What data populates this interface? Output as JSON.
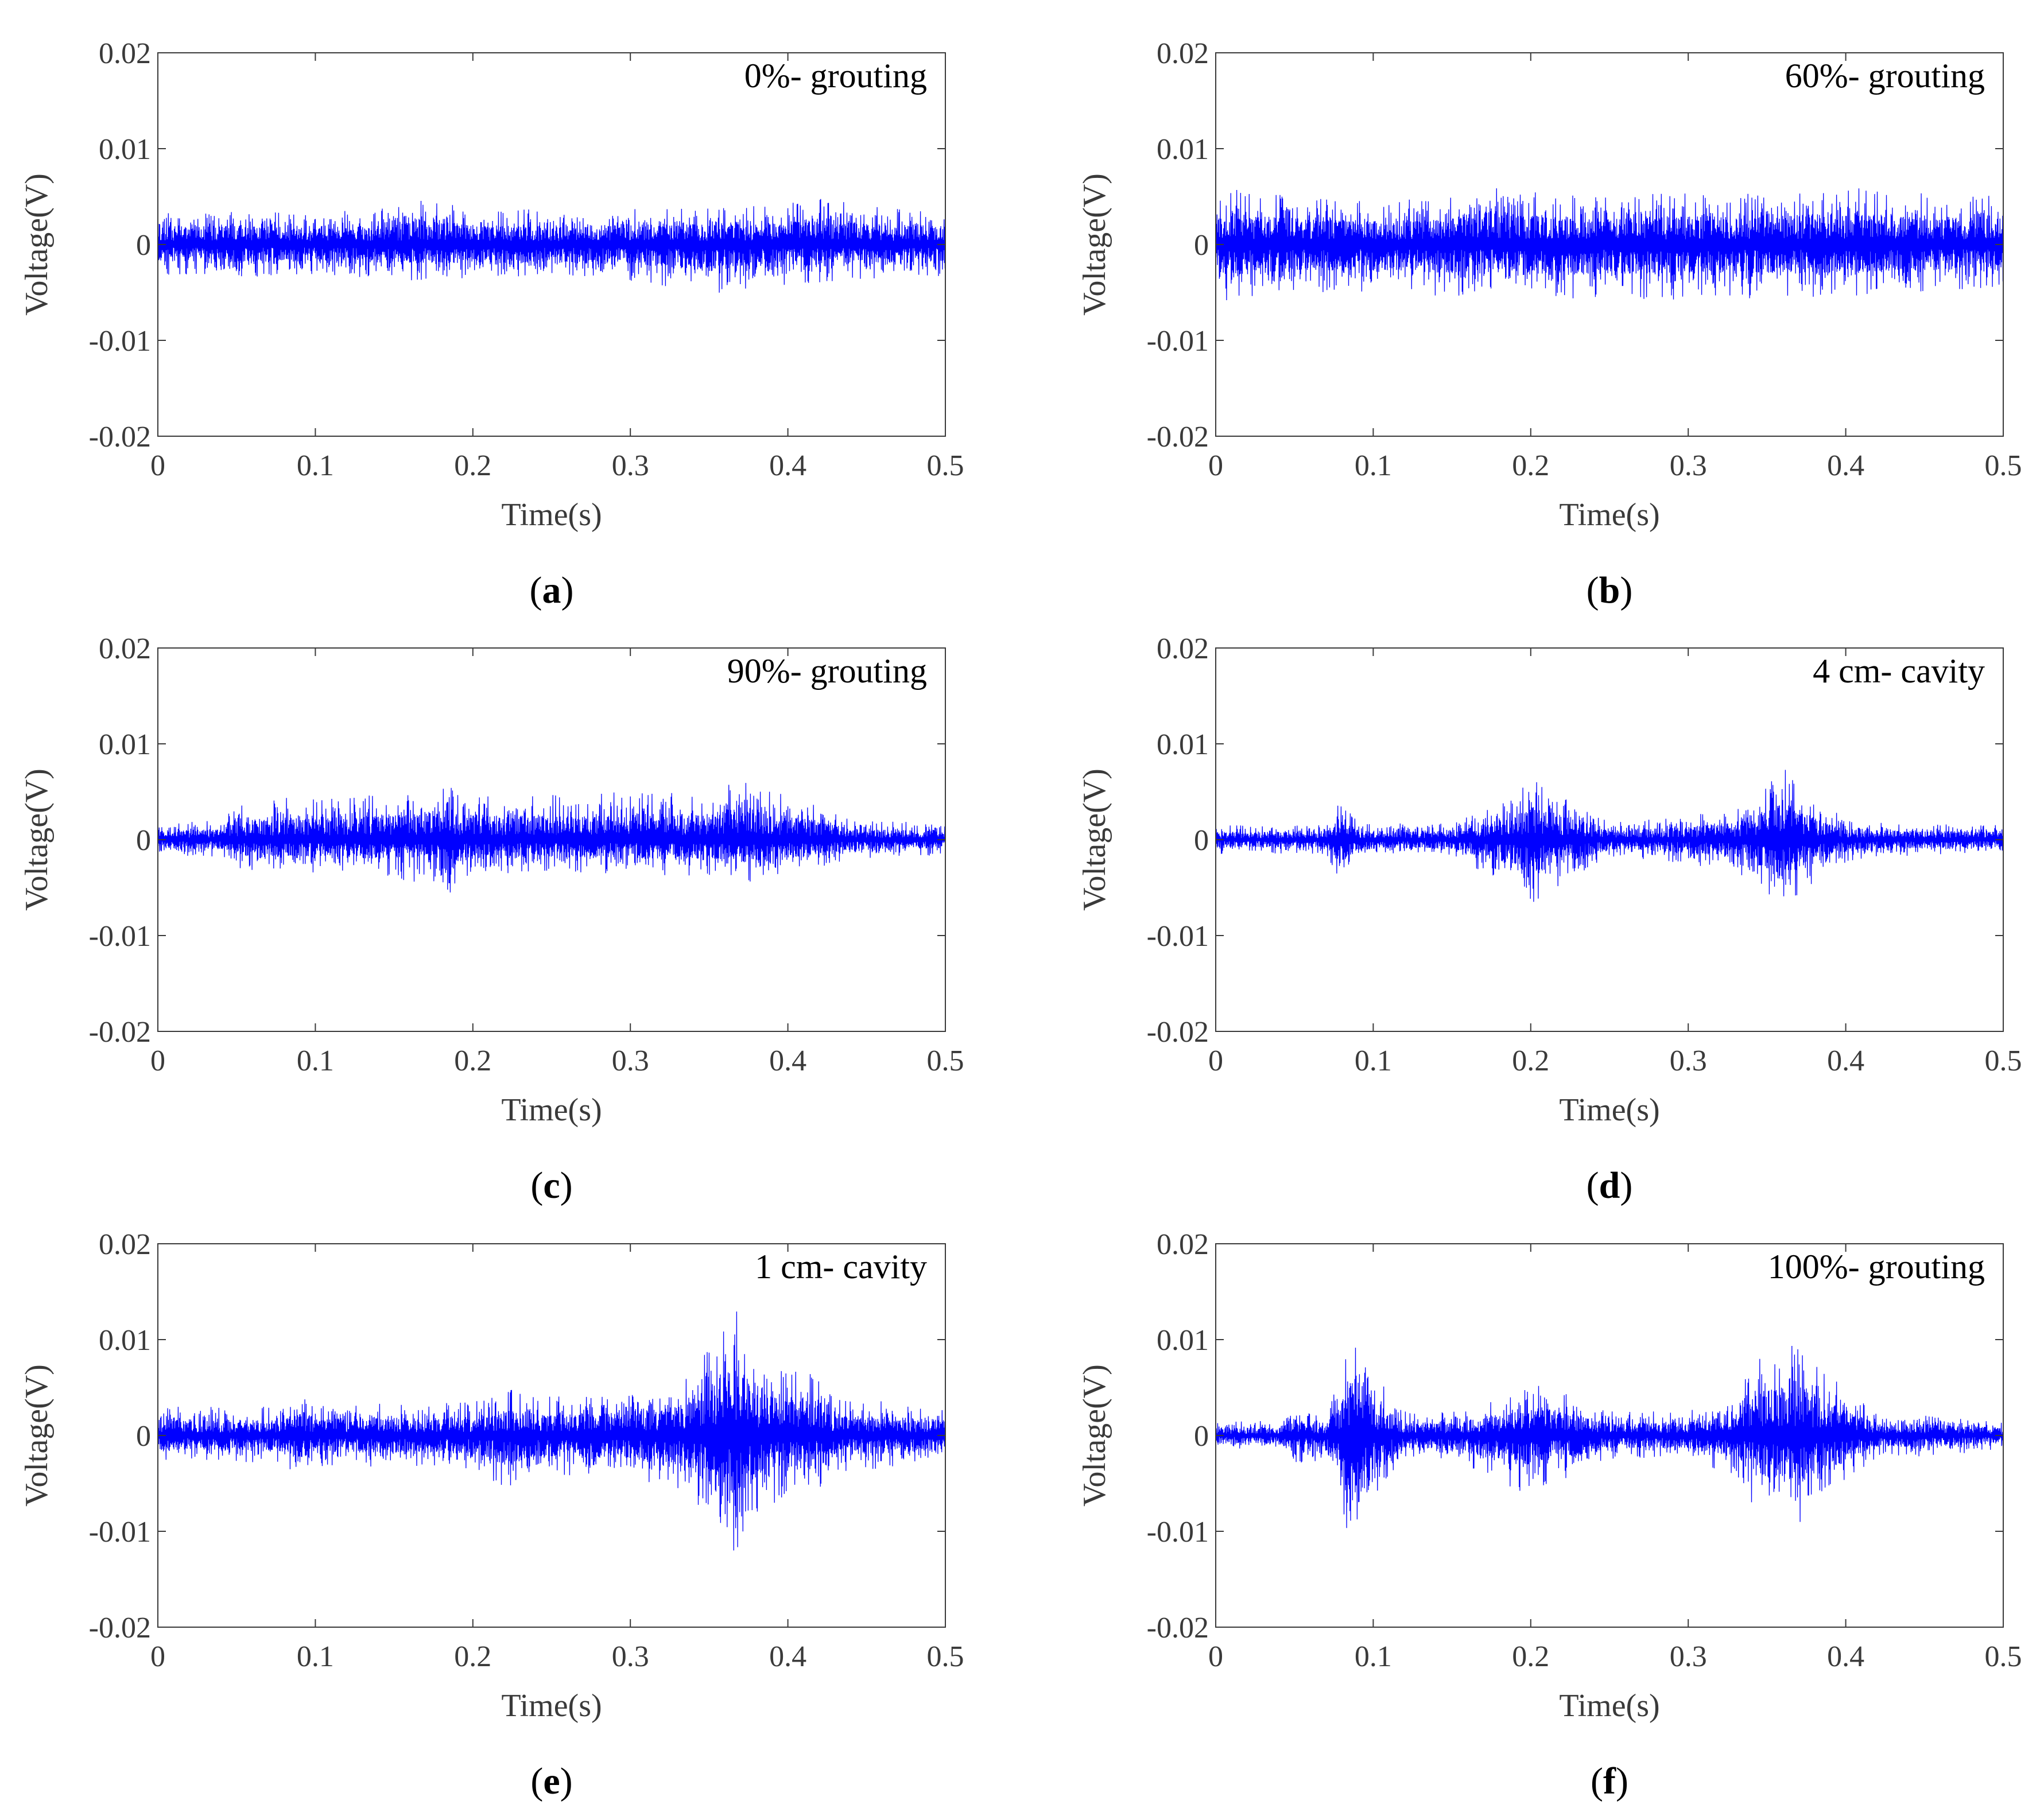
{
  "figure": {
    "panel_layout": [
      {
        "col": 0,
        "row": 0
      },
      {
        "col": 1,
        "row": 0
      },
      {
        "col": 0,
        "row": 1
      },
      {
        "col": 1,
        "row": 1
      },
      {
        "col": 0,
        "row": 2
      },
      {
        "col": 1,
        "row": 2
      }
    ]
  },
  "chart_data": [
    {
      "type": "line",
      "panel": "(a)",
      "panel_letter": "a",
      "annotation": "0%- grouting",
      "xlabel": "Time(s)",
      "ylabel": "Voltage(V)",
      "xlim": [
        0,
        0.5
      ],
      "ylim": [
        -0.02,
        0.02
      ],
      "xticks": [
        0,
        0.1,
        0.2,
        0.3,
        0.4,
        0.5
      ],
      "xtick_labels": [
        "0",
        "0.1",
        "0.2",
        "0.3",
        "0.4",
        "0.5"
      ],
      "yticks": [
        0.02,
        0.01,
        0,
        -0.01,
        -0.02
      ],
      "ytick_labels": [
        "0.02",
        "0.01",
        "0",
        "-0.01",
        "-0.02"
      ],
      "grid": false,
      "color": "#0000ff",
      "envelope": {
        "x": [
          0,
          0.05,
          0.1,
          0.15,
          0.165,
          0.2,
          0.25,
          0.3,
          0.35,
          0.4,
          0.42,
          0.45,
          0.5
        ],
        "upper": [
          0.0035,
          0.0035,
          0.0035,
          0.0038,
          0.0048,
          0.0038,
          0.0036,
          0.0038,
          0.0038,
          0.0042,
          0.0052,
          0.004,
          0.0035
        ],
        "lower": [
          -0.0032,
          -0.0035,
          -0.0032,
          -0.0036,
          -0.0038,
          -0.0036,
          -0.0035,
          -0.0038,
          -0.0052,
          -0.0042,
          -0.004,
          -0.0038,
          -0.0033
        ]
      }
    },
    {
      "type": "line",
      "panel": "(b)",
      "panel_letter": "b",
      "annotation": "60%- grouting",
      "xlabel": "Time(s)",
      "ylabel": "Voltage(V)",
      "xlim": [
        0,
        0.5
      ],
      "ylim": [
        -0.02,
        0.02
      ],
      "xticks": [
        0,
        0.1,
        0.2,
        0.3,
        0.4,
        0.5
      ],
      "xtick_labels": [
        "0",
        "0.1",
        "0.2",
        "0.3",
        "0.4",
        "0.5"
      ],
      "yticks": [
        0.02,
        0.01,
        0,
        -0.01,
        -0.02
      ],
      "ytick_labels": [
        "0.02",
        "0.01",
        "0",
        "-0.01",
        "-0.02"
      ],
      "grid": false,
      "color": "#0000ff",
      "envelope": {
        "x": [
          0,
          0.005,
          0.05,
          0.1,
          0.15,
          0.175,
          0.2,
          0.25,
          0.3,
          0.35,
          0.4,
          0.45,
          0.5
        ],
        "upper": [
          0.0045,
          0.006,
          0.005,
          0.0045,
          0.005,
          0.007,
          0.0055,
          0.005,
          0.0055,
          0.0055,
          0.006,
          0.0055,
          0.005
        ],
        "lower": [
          -0.004,
          -0.006,
          -0.005,
          -0.005,
          -0.0055,
          -0.005,
          -0.006,
          -0.0055,
          -0.006,
          -0.0055,
          -0.0055,
          -0.005,
          -0.0045
        ]
      }
    },
    {
      "type": "line",
      "panel": "(c)",
      "panel_letter": "c",
      "annotation": "90%- grouting",
      "xlabel": "Time(s)",
      "ylabel": "Voltage(V)",
      "xlim": [
        0,
        0.5
      ],
      "ylim": [
        -0.02,
        0.02
      ],
      "xticks": [
        0,
        0.1,
        0.2,
        0.3,
        0.4,
        0.5
      ],
      "xtick_labels": [
        "0",
        "0.1",
        "0.2",
        "0.3",
        "0.4",
        "0.5"
      ],
      "yticks": [
        0.02,
        0.01,
        0,
        -0.01,
        -0.02
      ],
      "ytick_labels": [
        "0.02",
        "0.01",
        "0",
        "-0.01",
        "-0.02"
      ],
      "grid": false,
      "color": "#0000ff",
      "envelope": {
        "x": [
          0,
          0.04,
          0.05,
          0.08,
          0.12,
          0.18,
          0.185,
          0.19,
          0.22,
          0.3,
          0.35,
          0.37,
          0.4,
          0.43,
          0.44,
          0.5
        ],
        "upper": [
          0.0018,
          0.002,
          0.0035,
          0.0045,
          0.0045,
          0.0055,
          0.0078,
          0.005,
          0.0045,
          0.005,
          0.005,
          0.0065,
          0.0045,
          0.003,
          0.002,
          0.0018
        ],
        "lower": [
          -0.0016,
          -0.0018,
          -0.003,
          -0.0035,
          -0.0035,
          -0.005,
          -0.0078,
          -0.004,
          -0.0035,
          -0.0035,
          -0.004,
          -0.005,
          -0.0035,
          -0.0025,
          -0.002,
          -0.0016
        ]
      }
    },
    {
      "type": "line",
      "panel": "(d)",
      "panel_letter": "d",
      "annotation": "4 cm- cavity",
      "xlabel": "Time(s)",
      "ylabel": "Voltage(V)",
      "xlim": [
        0,
        0.5
      ],
      "ylim": [
        -0.02,
        0.02
      ],
      "xticks": [
        0,
        0.1,
        0.2,
        0.3,
        0.4,
        0.5
      ],
      "xtick_labels": [
        "0",
        "0.1",
        "0.2",
        "0.3",
        "0.4",
        "0.5"
      ],
      "yticks": [
        0.02,
        0.01,
        0,
        -0.01,
        -0.02
      ],
      "ytick_labels": [
        "0.02",
        "0.01",
        "0",
        "-0.01",
        "-0.02"
      ],
      "grid": false,
      "color": "#0000ff",
      "envelope": {
        "x": [
          0,
          0.07,
          0.08,
          0.09,
          0.15,
          0.19,
          0.2,
          0.21,
          0.23,
          0.25,
          0.3,
          0.34,
          0.36,
          0.37,
          0.39,
          0.42,
          0.5
        ],
        "upper": [
          0.0015,
          0.0015,
          0.0045,
          0.0018,
          0.0018,
          0.0045,
          0.0065,
          0.0055,
          0.004,
          0.0018,
          0.0025,
          0.0035,
          0.0078,
          0.0055,
          0.003,
          0.0018,
          0.0015
        ],
        "lower": [
          -0.0015,
          -0.0015,
          -0.0045,
          -0.0018,
          -0.0018,
          -0.005,
          -0.007,
          -0.0055,
          -0.004,
          -0.0018,
          -0.0025,
          -0.004,
          -0.008,
          -0.006,
          -0.003,
          -0.0018,
          -0.0015
        ]
      }
    },
    {
      "type": "line",
      "panel": "(e)",
      "panel_letter": "e",
      "annotation": "1 cm- cavity",
      "xlabel": "Time(s)",
      "ylabel": "Voltage(V)",
      "xlim": [
        0,
        0.5
      ],
      "ylim": [
        -0.02,
        0.02
      ],
      "xticks": [
        0,
        0.1,
        0.2,
        0.3,
        0.4,
        0.5
      ],
      "xtick_labels": [
        "0",
        "0.1",
        "0.2",
        "0.3",
        "0.4",
        "0.5"
      ],
      "yticks": [
        0.02,
        0.01,
        0,
        -0.01,
        -0.02
      ],
      "ytick_labels": [
        "0.02",
        "0.01",
        "0",
        "-0.01",
        "-0.02"
      ],
      "grid": false,
      "color": "#0000ff",
      "envelope": {
        "x": [
          0,
          0.08,
          0.09,
          0.1,
          0.2,
          0.22,
          0.24,
          0.3,
          0.33,
          0.35,
          0.365,
          0.38,
          0.4,
          0.41,
          0.43,
          0.5
        ],
        "upper": [
          0.003,
          0.003,
          0.005,
          0.0032,
          0.0035,
          0.005,
          0.004,
          0.0045,
          0.0055,
          0.009,
          0.0145,
          0.0085,
          0.0065,
          0.0075,
          0.004,
          0.003
        ],
        "lower": [
          -0.0028,
          -0.0028,
          -0.005,
          -0.0032,
          -0.0035,
          -0.0055,
          -0.004,
          -0.0045,
          -0.0055,
          -0.0095,
          -0.0135,
          -0.008,
          -0.0065,
          -0.007,
          -0.004,
          -0.0028
        ]
      }
    },
    {
      "type": "line",
      "panel": "(f)",
      "panel_letter": "f",
      "annotation": "100%- grouting",
      "xlabel": "Time(s)",
      "ylabel": "Voltage(V)",
      "xlim": [
        0,
        0.5
      ],
      "ylim": [
        -0.02,
        0.02
      ],
      "xticks": [
        0,
        0.1,
        0.2,
        0.3,
        0.4,
        0.5
      ],
      "xtick_labels": [
        "0",
        "0.1",
        "0.2",
        "0.3",
        "0.4",
        "0.5"
      ],
      "yticks": [
        0.02,
        0.01,
        0,
        -0.01,
        -0.02
      ],
      "ytick_labels": [
        "0.02",
        "0.01",
        "0",
        "-0.01",
        "-0.02"
      ],
      "grid": false,
      "color": "#0000ff",
      "envelope": {
        "x": [
          0,
          0.04,
          0.05,
          0.07,
          0.08,
          0.09,
          0.1,
          0.12,
          0.15,
          0.19,
          0.21,
          0.23,
          0.25,
          0.3,
          0.33,
          0.35,
          0.36,
          0.37,
          0.4,
          0.42,
          0.45,
          0.5
        ],
        "upper": [
          0.0015,
          0.0015,
          0.003,
          0.002,
          0.0075,
          0.0125,
          0.0065,
          0.0025,
          0.0025,
          0.0045,
          0.0055,
          0.004,
          0.0025,
          0.0025,
          0.0045,
          0.0095,
          0.0092,
          0.0095,
          0.005,
          0.0022,
          0.0022,
          0.0015
        ],
        "lower": [
          -0.0015,
          -0.0015,
          -0.004,
          -0.002,
          -0.009,
          -0.0135,
          -0.0065,
          -0.0025,
          -0.0025,
          -0.006,
          -0.0055,
          -0.004,
          -0.0025,
          -0.0025,
          -0.0045,
          -0.0095,
          -0.008,
          -0.0095,
          -0.005,
          -0.0022,
          -0.0022,
          -0.0015
        ]
      }
    }
  ]
}
